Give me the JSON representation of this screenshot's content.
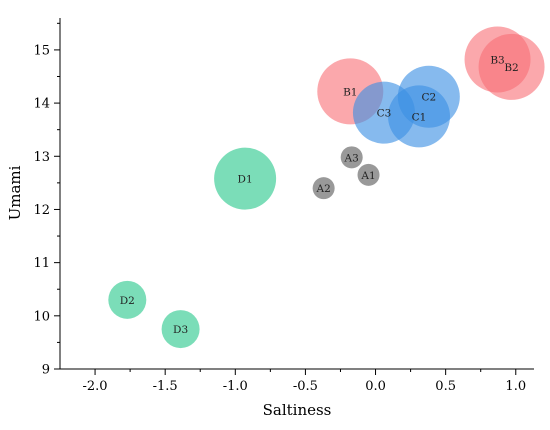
{
  "chart_data": {
    "type": "scatter",
    "title": "",
    "xlabel": "Saltiness",
    "ylabel": "Umami",
    "xlim": [
      -2.25,
      1.13
    ],
    "ylim": [
      9,
      15.6
    ],
    "xticks": [
      -2.0,
      -1.5,
      -1.0,
      -0.5,
      0.0,
      0.5,
      1.0
    ],
    "xtick_labels": [
      "-2.0",
      "-1.5",
      "-1.0",
      "-0.5",
      "0.0",
      "0.5",
      "1.0"
    ],
    "yticks": [
      9,
      10,
      11,
      12,
      13,
      14,
      15
    ],
    "ytick_labels": [
      "9",
      "10",
      "11",
      "12",
      "13",
      "14",
      "15"
    ],
    "grid": false,
    "legend": "none",
    "groups": [
      {
        "group": "A",
        "color": "#808080",
        "points": [
          {
            "label": "A1",
            "x": -0.05,
            "y": 12.65
          },
          {
            "label": "A2",
            "x": -0.37,
            "y": 12.4
          },
          {
            "label": "A3",
            "x": -0.17,
            "y": 12.98
          }
        ]
      },
      {
        "group": "B",
        "color": "#f86e75",
        "points": [
          {
            "label": "B1",
            "x": -0.18,
            "y": 14.22
          },
          {
            "label": "B2",
            "x": 0.97,
            "y": 14.68
          },
          {
            "label": "B3",
            "x": 0.87,
            "y": 14.82
          }
        ]
      },
      {
        "group": "C",
        "color": "#3b8fe3",
        "points": [
          {
            "label": "C1",
            "x": 0.31,
            "y": 13.75
          },
          {
            "label": "C2",
            "x": 0.38,
            "y": 14.12
          },
          {
            "label": "C3",
            "x": 0.06,
            "y": 13.82
          }
        ]
      },
      {
        "group": "D",
        "color": "#4fd2a0",
        "points": [
          {
            "label": "D1",
            "x": -0.93,
            "y": 12.58
          },
          {
            "label": "D2",
            "x": -1.77,
            "y": 10.3
          },
          {
            "label": "D3",
            "x": -1.39,
            "y": 9.75
          }
        ]
      }
    ]
  }
}
